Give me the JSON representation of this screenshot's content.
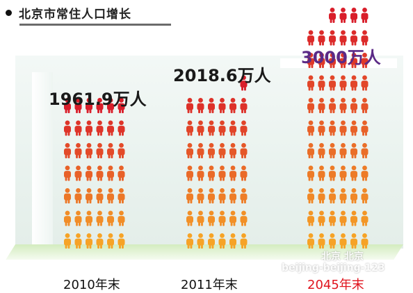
{
  "title": "北京市常住人口增长",
  "watermark": {
    "line1": "北京 北京",
    "line2": "beijing-beijing-123"
  },
  "colors": {
    "top": "#d91e2a",
    "bottom": "#f6a326",
    "highlight_value": "#5b2a86",
    "highlight_category": "#e0141e"
  },
  "chart_data": {
    "type": "bar",
    "title": "北京市常住人口增长",
    "categories": [
      "2010年末",
      "2011年末",
      "2045年末"
    ],
    "values": [
      1961.9,
      2018.6,
      3000
    ],
    "value_labels": [
      "1961.9万人",
      "2018.6万人",
      "3000万人"
    ],
    "unit": "万人",
    "xlabel": "",
    "ylabel": ""
  }
}
